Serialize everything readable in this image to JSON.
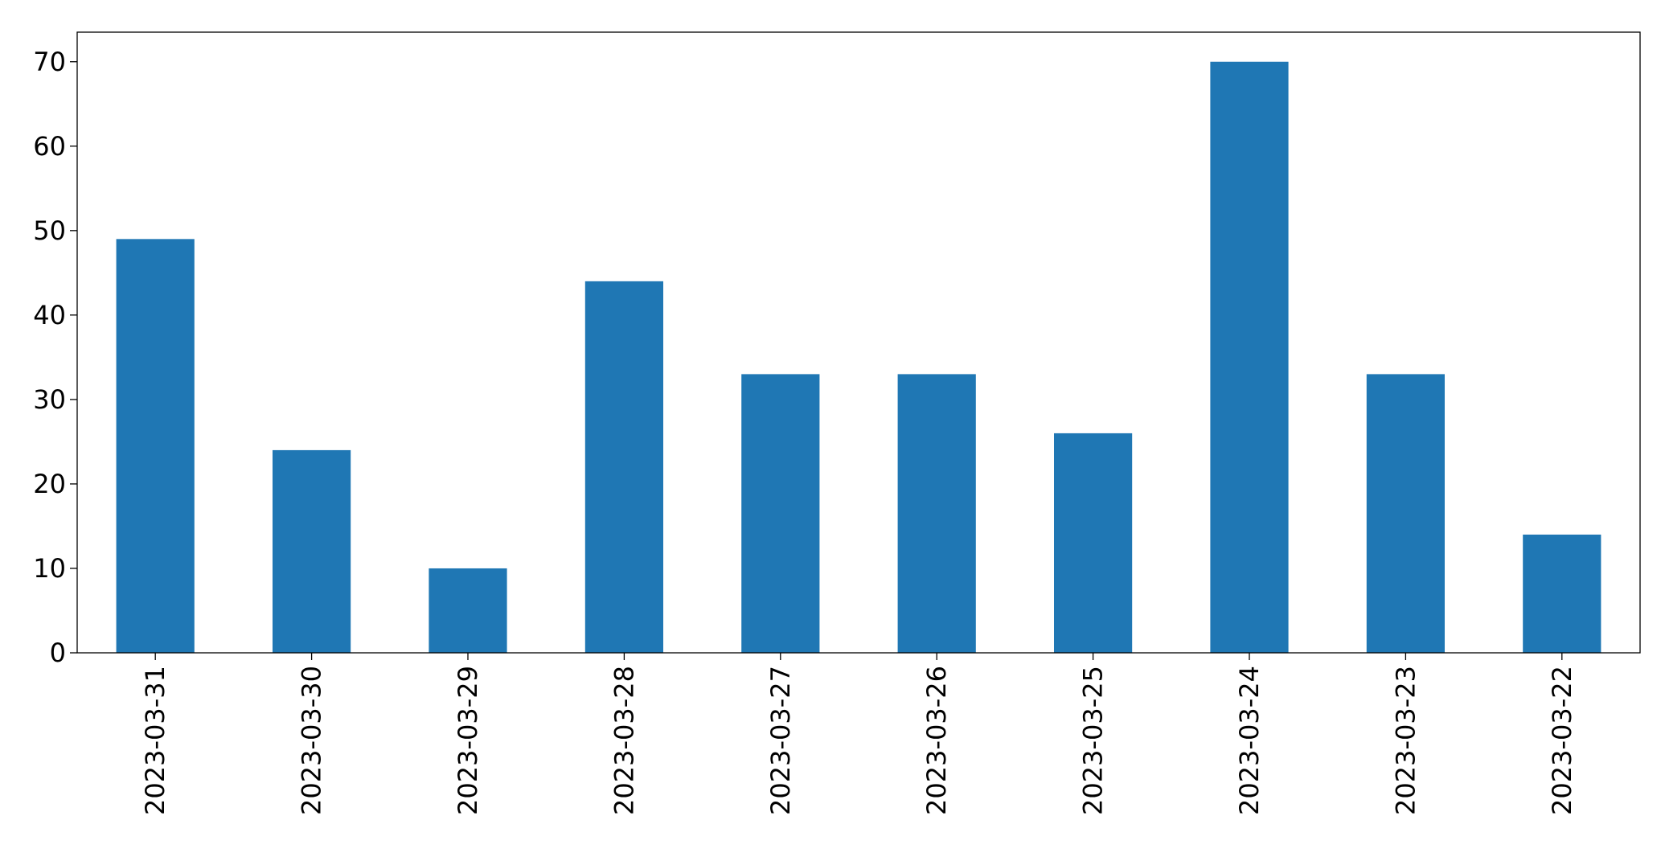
{
  "chart_data": {
    "type": "bar",
    "categories": [
      "2023-03-31",
      "2023-03-30",
      "2023-03-29",
      "2023-03-28",
      "2023-03-27",
      "2023-03-26",
      "2023-03-25",
      "2023-03-24",
      "2023-03-23",
      "2023-03-22"
    ],
    "values": [
      49,
      24,
      10,
      44,
      33,
      33,
      26,
      70,
      33,
      14
    ],
    "color": "#1f77b4",
    "ylim": [
      0,
      73.5
    ],
    "yticks": [
      0,
      10,
      20,
      30,
      40,
      50,
      60,
      70
    ],
    "grid": false
  }
}
